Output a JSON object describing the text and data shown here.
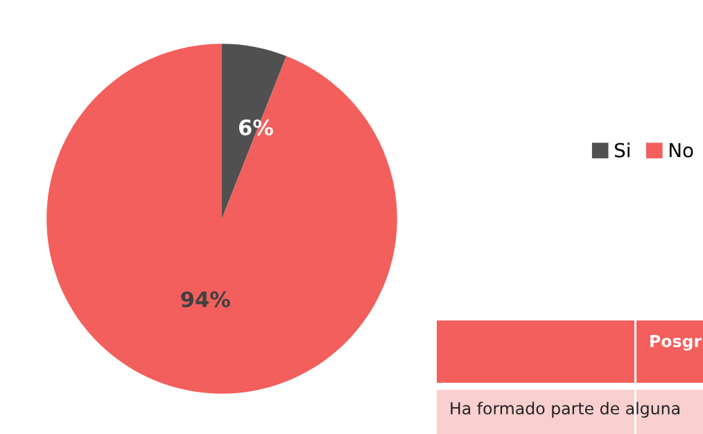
{
  "chart_data": {
    "type": "pie",
    "categories": [
      "Si",
      "No"
    ],
    "values": [
      6,
      94
    ],
    "colors": [
      "#505050",
      "#f25f5c"
    ],
    "value_labels": [
      "6%",
      "94%"
    ],
    "legend": "right",
    "annotations": [
      "Posgr",
      "Ha formado parte de alguna"
    ]
  }
}
